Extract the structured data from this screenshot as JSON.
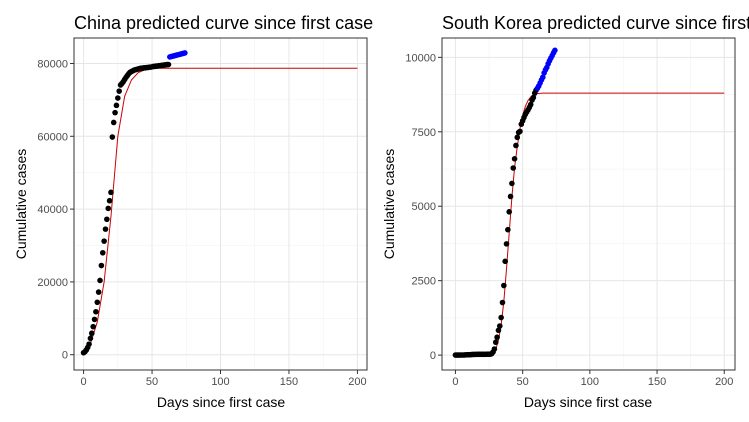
{
  "chart_data": [
    {
      "type": "scatter",
      "title": "China predicted curve since first case",
      "xlabel": "Days since first case",
      "ylabel": "Cumulative cases",
      "xlim": [
        -7,
        207
      ],
      "ylim": [
        -4200,
        87000
      ],
      "x_ticks": [
        0,
        50,
        100,
        150,
        200
      ],
      "y_ticks": [
        0,
        20000,
        40000,
        60000,
        80000
      ],
      "x_tick_labels": [
        "0",
        "50",
        "100",
        "150",
        "200"
      ],
      "y_tick_labels": [
        "0",
        "20000",
        "40000",
        "60000",
        "80000"
      ],
      "grid": true,
      "series": [
        {
          "role": "observed",
          "color": "#000000",
          "x": [
            0,
            1,
            2,
            3,
            4,
            5,
            6,
            7,
            8,
            9,
            10,
            11,
            12,
            13,
            14,
            15,
            16,
            17,
            18,
            19,
            20,
            21,
            22,
            23,
            24,
            25,
            26,
            27,
            28,
            29,
            30,
            31,
            32,
            33,
            34,
            35,
            36,
            37,
            38,
            39,
            40,
            41,
            42,
            43,
            44,
            45,
            46,
            47,
            48,
            49,
            50,
            51,
            52,
            53,
            54,
            55,
            56,
            57,
            58,
            59,
            60,
            61,
            62
          ],
          "y": [
            550,
            830,
            1300,
            2000,
            2900,
            4500,
            5900,
            7700,
            9700,
            11800,
            14400,
            17200,
            20400,
            24500,
            28000,
            31200,
            34500,
            37200,
            40200,
            42300,
            44600,
            59800,
            63800,
            66500,
            68500,
            70500,
            72400,
            74100,
            74500,
            75000,
            75600,
            76200,
            76700,
            77200,
            77600,
            77800,
            78000,
            78200,
            78300,
            78400,
            78500,
            78600,
            78700,
            78700,
            78800,
            78800,
            78900,
            78900,
            79000,
            79000,
            79100,
            79200,
            79200,
            79300,
            79300,
            79400,
            79400,
            79500,
            79500,
            79600,
            79600,
            79700,
            79700
          ]
        },
        {
          "role": "recent",
          "color": "#0000ff",
          "x": [
            63,
            64,
            65,
            66,
            67,
            68,
            69,
            70,
            71,
            72,
            73,
            74
          ],
          "y": [
            81800,
            81900,
            82000,
            82100,
            82200,
            82300,
            82400,
            82500,
            82600,
            82700,
            82800,
            82900
          ]
        }
      ],
      "fit": {
        "color": "#cc0000",
        "x": [
          0,
          5,
          10,
          15,
          20,
          25,
          30,
          35,
          40,
          45,
          50,
          55,
          60,
          70,
          80,
          100,
          150,
          200
        ],
        "y": [
          400,
          3000,
          9000,
          20000,
          38000,
          60000,
          71000,
          75500,
          77500,
          78300,
          78600,
          78700,
          78700,
          78700,
          78700,
          78700,
          78700,
          78700
        ]
      }
    },
    {
      "type": "scatter",
      "title": "South Korea predicted curve since first case",
      "xlabel": "Days since first case",
      "ylabel": "Cumulative cases",
      "xlim": [
        -10,
        208
      ],
      "ylim": [
        -500,
        10650
      ],
      "x_ticks": [
        0,
        50,
        100,
        150,
        200
      ],
      "y_ticks": [
        0,
        2500,
        5000,
        7500,
        10000
      ],
      "x_tick_labels": [
        "0",
        "50",
        "100",
        "150",
        "200"
      ],
      "y_tick_labels": [
        "0",
        "2500",
        "5000",
        "7500",
        "10000"
      ],
      "grid": true,
      "series": [
        {
          "role": "observed",
          "color": "#000000",
          "x": [
            0,
            1,
            2,
            3,
            4,
            5,
            6,
            7,
            8,
            9,
            10,
            11,
            12,
            13,
            14,
            15,
            16,
            17,
            18,
            19,
            20,
            21,
            22,
            23,
            24,
            25,
            26,
            27,
            28,
            29,
            30,
            31,
            32,
            33,
            34,
            35,
            36,
            37,
            38,
            39,
            40,
            41,
            42,
            43,
            44,
            45,
            46,
            47,
            48,
            49,
            50,
            51,
            52,
            53,
            54,
            55,
            56,
            57,
            58,
            59,
            60
          ],
          "y": [
            1,
            1,
            1,
            2,
            4,
            4,
            4,
            6,
            11,
            12,
            15,
            16,
            18,
            23,
            24,
            25,
            27,
            28,
            28,
            28,
            28,
            28,
            28,
            29,
            30,
            31,
            31,
            51,
            104,
            204,
            433,
            602,
            833,
            977,
            1261,
            1766,
            2337,
            3150,
            3736,
            4212,
            4812,
            5328,
            5766,
            6284,
            6593,
            7041,
            7313,
            7478,
            7513,
            7755,
            7869,
            7979,
            8086,
            8162,
            8236,
            8320,
            8413,
            8565,
            8652,
            8799,
            8897
          ]
        },
        {
          "role": "recent",
          "color": "#0000ff",
          "x": [
            61,
            62,
            63,
            64,
            65,
            66,
            67,
            68,
            69,
            70,
            71,
            72,
            73,
            74
          ],
          "y": [
            8961,
            9037,
            9137,
            9241,
            9332,
            9478,
            9583,
            9661,
            9786,
            9887,
            9976,
            10062,
            10156,
            10237
          ]
        }
      ],
      "fit": {
        "color": "#cc0000",
        "x": [
          0,
          10,
          20,
          25,
          28,
          30,
          32,
          34,
          36,
          38,
          40,
          42,
          44,
          46,
          48,
          50,
          52,
          54,
          56,
          58,
          60,
          65,
          70,
          100,
          150,
          200
        ],
        "y": [
          0,
          0,
          0,
          10,
          60,
          200,
          500,
          1000,
          1800,
          2900,
          4100,
          5300,
          6300,
          7000,
          7600,
          8050,
          8350,
          8550,
          8670,
          8740,
          8780,
          8800,
          8800,
          8800,
          8800,
          8800
        ]
      }
    }
  ]
}
